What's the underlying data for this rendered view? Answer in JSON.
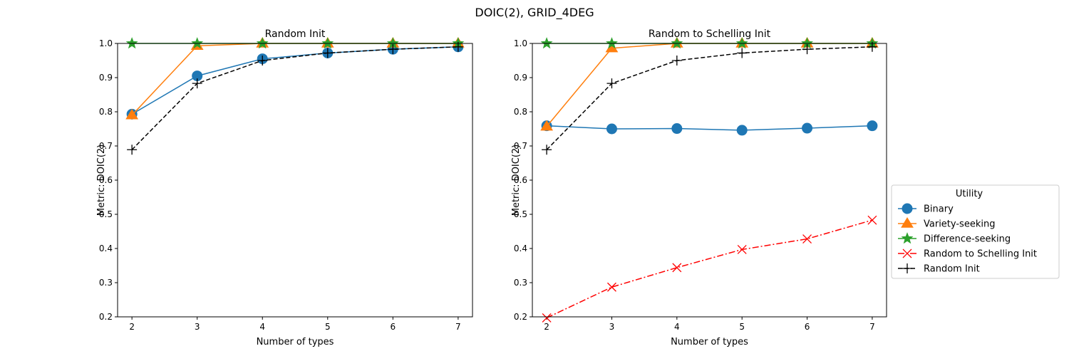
{
  "figure": {
    "title": "DOIC(2), GRID_4DEG"
  },
  "legend": {
    "title": "Utility",
    "placement": "center-right outside",
    "entries": [
      "Binary",
      "Variety-seeking",
      "Difference-seeking",
      "Random to Schelling Init",
      "Random Init"
    ]
  },
  "colors": {
    "binary": "#1f77b4",
    "variety": "#ff7f0e",
    "difference": "#2ca02c",
    "rand_to_schelling": "#ff0000",
    "random_init": "#000000"
  },
  "chart_data": [
    {
      "type": "line",
      "title": "Random Init",
      "xlabel": "Number of types",
      "ylabel": "Metric: DOIC(2)",
      "xlim": [
        1.78,
        7.22
      ],
      "ylim": [
        0.2,
        1.0
      ],
      "xticks": [
        "2",
        "3",
        "4",
        "5",
        "6",
        "7"
      ],
      "yticks": [
        "0.2",
        "0.3",
        "0.4",
        "0.5",
        "0.6",
        "0.7",
        "0.8",
        "0.9",
        "1.0"
      ],
      "grid": false,
      "x": [
        2,
        3,
        4,
        5,
        6,
        7
      ],
      "series": [
        {
          "name": "Binary",
          "key": "binary",
          "marker": "circle",
          "dash": "solid",
          "values": [
            0.793,
            0.905,
            0.955,
            0.972,
            0.983,
            0.99
          ]
        },
        {
          "name": "Variety-seeking",
          "key": "variety",
          "marker": "triangle",
          "dash": "solid",
          "values": [
            0.79,
            0.993,
            1.0,
            1.0,
            1.0,
            1.0
          ]
        },
        {
          "name": "Difference-seeking",
          "key": "difference",
          "marker": "star",
          "dash": "solid",
          "values": [
            1.0,
            1.0,
            1.0,
            1.0,
            1.0,
            1.0
          ]
        },
        {
          "name": "Random Init",
          "key": "random_init",
          "marker": "plus",
          "dash": "dashed",
          "values": [
            0.689,
            0.883,
            0.95,
            0.972,
            0.983,
            0.99
          ]
        }
      ]
    },
    {
      "type": "line",
      "title": "Random to Schelling Init",
      "xlabel": "Number of types",
      "ylabel": "Metric: DOIC(2)",
      "xlim": [
        1.78,
        7.22
      ],
      "ylim": [
        0.2,
        1.0
      ],
      "xticks": [
        "2",
        "3",
        "4",
        "5",
        "6",
        "7"
      ],
      "yticks": [
        "0.2",
        "0.3",
        "0.4",
        "0.5",
        "0.6",
        "0.7",
        "0.8",
        "0.9",
        "1.0"
      ],
      "grid": false,
      "x": [
        2,
        3,
        4,
        5,
        6,
        7
      ],
      "series": [
        {
          "name": "Binary",
          "key": "binary",
          "marker": "circle",
          "dash": "solid",
          "values": [
            0.759,
            0.75,
            0.751,
            0.746,
            0.752,
            0.759
          ]
        },
        {
          "name": "Variety-seeking",
          "key": "variety",
          "marker": "triangle",
          "dash": "solid",
          "values": [
            0.757,
            0.986,
            1.0,
            1.0,
            1.0,
            1.0
          ]
        },
        {
          "name": "Difference-seeking",
          "key": "difference",
          "marker": "star",
          "dash": "solid",
          "values": [
            1.0,
            1.0,
            1.0,
            1.0,
            1.0,
            1.0
          ]
        },
        {
          "name": "Random to Schelling Init",
          "key": "rand_to_schelling",
          "marker": "x",
          "dash": "dashdot",
          "values": [
            0.197,
            0.287,
            0.344,
            0.397,
            0.428,
            0.483
          ]
        },
        {
          "name": "Random Init",
          "key": "random_init",
          "marker": "plus",
          "dash": "dashed",
          "values": [
            0.689,
            0.883,
            0.95,
            0.972,
            0.983,
            0.99
          ]
        }
      ]
    }
  ]
}
